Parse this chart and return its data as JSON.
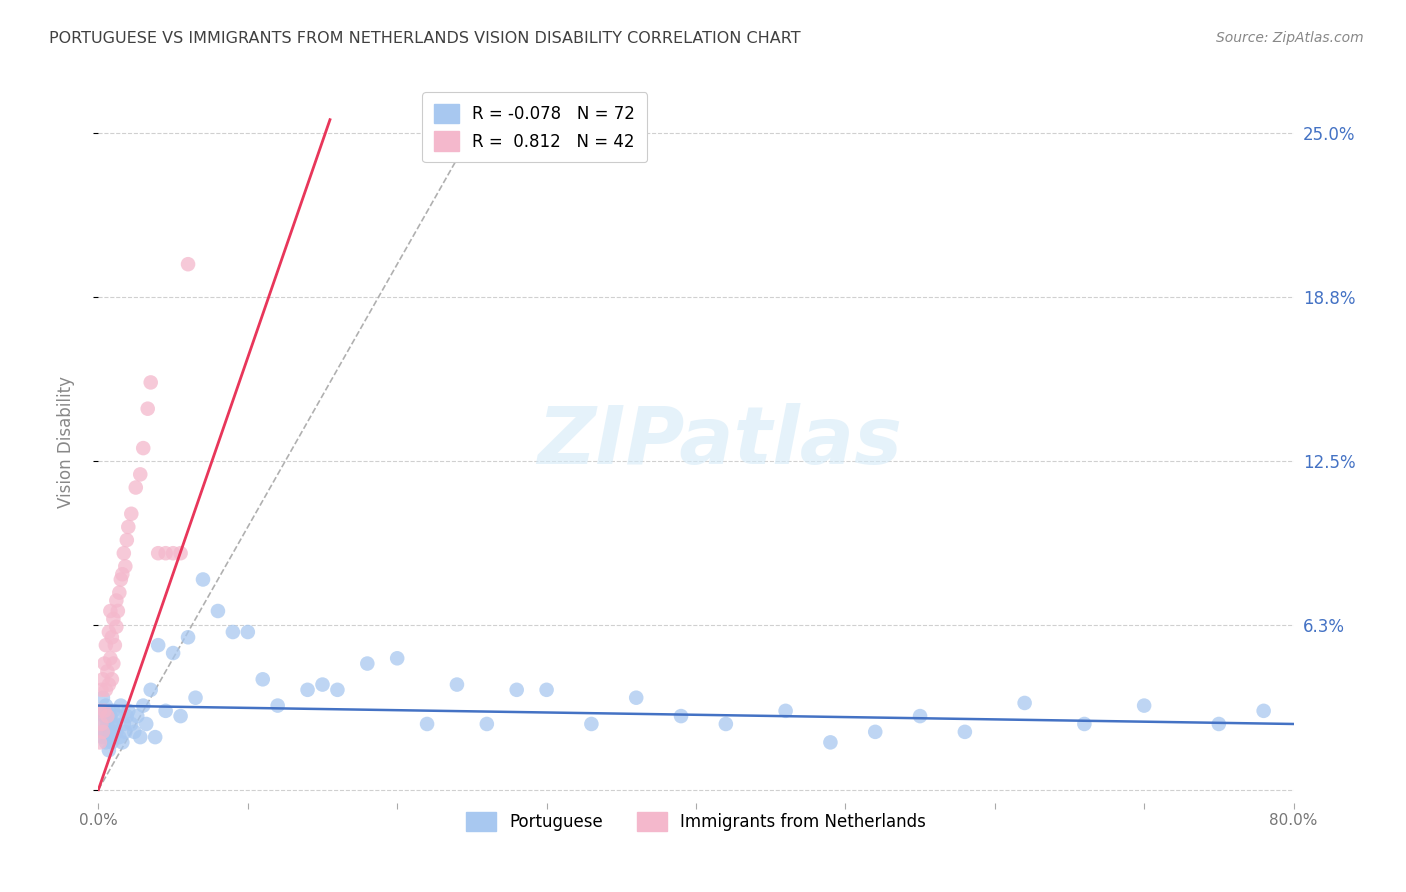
{
  "title": "PORTUGUESE VS IMMIGRANTS FROM NETHERLANDS VISION DISABILITY CORRELATION CHART",
  "source": "Source: ZipAtlas.com",
  "ylabel": "Vision Disability",
  "watermark": "ZIPatlas",
  "xlim": [
    0.0,
    0.8
  ],
  "ylim": [
    -0.005,
    0.27
  ],
  "xticks": [
    0.0,
    0.1,
    0.2,
    0.3,
    0.4,
    0.5,
    0.6,
    0.7,
    0.8
  ],
  "xticklabels": [
    "0.0%",
    "",
    "",
    "",
    "",
    "",
    "",
    "",
    "80.0%"
  ],
  "ytick_positions": [
    0.0,
    0.0625,
    0.125,
    0.1875,
    0.25
  ],
  "ytick_labels_right": [
    "",
    "6.3%",
    "12.5%",
    "18.8%",
    "25.0%"
  ],
  "blue_color": "#a8c8f0",
  "pink_color": "#f4b8cc",
  "blue_line_color": "#4472c4",
  "pink_line_color": "#e8365a",
  "R_blue": -0.078,
  "N_blue": 72,
  "R_pink": 0.812,
  "N_pink": 42,
  "grid_color": "#d0d0d0",
  "background_color": "#ffffff",
  "title_color": "#404040",
  "right_label_color": "#4472c4",
  "blue_scatter_x": [
    0.001,
    0.002,
    0.003,
    0.003,
    0.004,
    0.004,
    0.005,
    0.005,
    0.006,
    0.006,
    0.007,
    0.007,
    0.008,
    0.008,
    0.009,
    0.009,
    0.01,
    0.01,
    0.011,
    0.012,
    0.013,
    0.014,
    0.015,
    0.016,
    0.017,
    0.018,
    0.019,
    0.02,
    0.022,
    0.024,
    0.026,
    0.028,
    0.03,
    0.032,
    0.035,
    0.038,
    0.04,
    0.045,
    0.05,
    0.055,
    0.06,
    0.065,
    0.07,
    0.08,
    0.09,
    0.1,
    0.11,
    0.12,
    0.14,
    0.15,
    0.16,
    0.18,
    0.2,
    0.22,
    0.24,
    0.26,
    0.28,
    0.3,
    0.33,
    0.36,
    0.39,
    0.42,
    0.46,
    0.49,
    0.52,
    0.55,
    0.58,
    0.62,
    0.66,
    0.7,
    0.75,
    0.78
  ],
  "blue_scatter_y": [
    0.03,
    0.025,
    0.02,
    0.035,
    0.022,
    0.028,
    0.018,
    0.032,
    0.02,
    0.025,
    0.03,
    0.015,
    0.022,
    0.028,
    0.018,
    0.025,
    0.02,
    0.03,
    0.025,
    0.022,
    0.028,
    0.02,
    0.032,
    0.018,
    0.025,
    0.022,
    0.028,
    0.03,
    0.025,
    0.022,
    0.028,
    0.02,
    0.032,
    0.025,
    0.038,
    0.02,
    0.055,
    0.03,
    0.052,
    0.028,
    0.058,
    0.035,
    0.08,
    0.068,
    0.06,
    0.06,
    0.042,
    0.032,
    0.038,
    0.04,
    0.038,
    0.048,
    0.05,
    0.025,
    0.04,
    0.025,
    0.038,
    0.038,
    0.025,
    0.035,
    0.028,
    0.025,
    0.03,
    0.018,
    0.022,
    0.028,
    0.022,
    0.033,
    0.025,
    0.032,
    0.025,
    0.03
  ],
  "pink_scatter_x": [
    0.001,
    0.001,
    0.002,
    0.002,
    0.003,
    0.003,
    0.004,
    0.004,
    0.005,
    0.005,
    0.006,
    0.006,
    0.007,
    0.007,
    0.008,
    0.008,
    0.009,
    0.009,
    0.01,
    0.01,
    0.011,
    0.012,
    0.012,
    0.013,
    0.014,
    0.015,
    0.016,
    0.017,
    0.018,
    0.019,
    0.02,
    0.022,
    0.025,
    0.028,
    0.03,
    0.033,
    0.035,
    0.04,
    0.045,
    0.05,
    0.055,
    0.06
  ],
  "pink_scatter_y": [
    0.018,
    0.03,
    0.025,
    0.038,
    0.022,
    0.042,
    0.03,
    0.048,
    0.038,
    0.055,
    0.028,
    0.045,
    0.04,
    0.06,
    0.05,
    0.068,
    0.042,
    0.058,
    0.048,
    0.065,
    0.055,
    0.062,
    0.072,
    0.068,
    0.075,
    0.08,
    0.082,
    0.09,
    0.085,
    0.095,
    0.1,
    0.105,
    0.115,
    0.12,
    0.13,
    0.145,
    0.155,
    0.09,
    0.09,
    0.09,
    0.09,
    0.2
  ],
  "pink_line_x": [
    0.0,
    0.155
  ],
  "pink_line_y": [
    0.0,
    0.255
  ],
  "blue_line_x": [
    0.0,
    0.8
  ],
  "blue_line_y": [
    0.032,
    0.025
  ],
  "diag_line_x": [
    0.0,
    0.265
  ],
  "diag_line_y": [
    0.0,
    0.265
  ]
}
